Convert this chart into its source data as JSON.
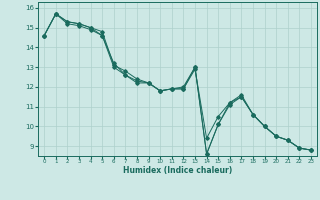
{
  "xlabel": "Humidex (Indice chaleur)",
  "ylabel": "",
  "bg_color": "#cde8e5",
  "grid_color": "#aed0cc",
  "line_color": "#1a6b5e",
  "xlim": [
    -0.5,
    23.5
  ],
  "ylim": [
    8.5,
    16.3
  ],
  "xticks": [
    0,
    1,
    2,
    3,
    4,
    5,
    6,
    7,
    8,
    9,
    10,
    11,
    12,
    13,
    14,
    15,
    16,
    17,
    18,
    19,
    20,
    21,
    22,
    23
  ],
  "yticks": [
    9,
    10,
    11,
    12,
    13,
    14,
    15,
    16
  ],
  "line1_x": [
    0,
    1,
    2,
    3,
    4,
    5,
    6,
    7,
    8,
    9,
    10,
    11,
    12,
    13,
    14,
    15,
    16,
    17,
    18,
    19,
    20,
    21,
    22,
    23
  ],
  "line1_y": [
    14.6,
    15.7,
    15.3,
    15.2,
    15.0,
    14.8,
    13.1,
    12.8,
    12.4,
    12.2,
    11.8,
    11.9,
    12.0,
    13.0,
    8.6,
    10.1,
    11.2,
    11.5,
    10.6,
    10.0,
    9.5,
    9.3,
    8.9,
    8.8
  ],
  "line2_x": [
    0,
    1,
    2,
    3,
    4,
    5,
    6,
    7,
    8,
    9,
    10,
    11,
    12,
    13,
    14,
    15,
    16,
    17,
    18,
    19,
    20,
    21,
    22,
    23
  ],
  "line2_y": [
    14.6,
    15.7,
    15.3,
    15.2,
    15.0,
    14.6,
    13.2,
    12.6,
    12.3,
    12.2,
    11.8,
    11.9,
    11.9,
    13.0,
    8.6,
    10.1,
    11.1,
    11.5,
    10.6,
    10.0,
    9.5,
    9.3,
    8.9,
    8.8
  ],
  "line3_x": [
    0,
    1,
    2,
    3,
    4,
    5,
    6,
    7,
    8,
    9,
    10,
    11,
    12,
    13,
    14,
    15,
    16,
    17,
    18,
    19,
    20,
    21,
    22,
    23
  ],
  "line3_y": [
    14.6,
    15.7,
    15.2,
    15.1,
    14.9,
    14.6,
    13.0,
    12.6,
    12.2,
    12.2,
    11.8,
    11.9,
    11.9,
    12.9,
    9.4,
    10.5,
    11.2,
    11.6,
    10.6,
    10.0,
    9.5,
    9.3,
    8.9,
    8.8
  ]
}
